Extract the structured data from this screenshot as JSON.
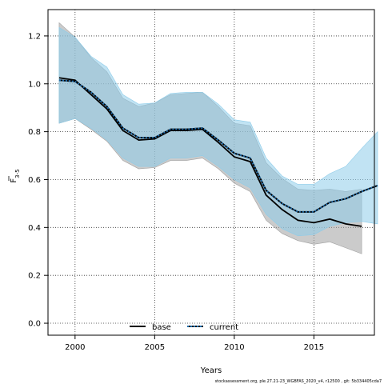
{
  "chart_data": {
    "type": "line",
    "xlabel": "Years",
    "ylabel": "F",
    "ylabel_sub": "3-5",
    "xlim": [
      1998.3,
      2018.8
    ],
    "ylim": [
      -0.05,
      1.31
    ],
    "xticks": [
      2000,
      2005,
      2010,
      2015
    ],
    "yticks": [
      0.0,
      0.2,
      0.4,
      0.6,
      0.8,
      1.0,
      1.2
    ],
    "grid": true,
    "grid_style": "dotted",
    "legend": {
      "placement": "bottom-center"
    },
    "series": [
      {
        "name": "base",
        "color": "#000000",
        "band_color": "#a0a0a0",
        "line_style": "solid",
        "x": [
          1999,
          2000,
          2001,
          2002,
          2003,
          2004,
          2005,
          2006,
          2007,
          2008,
          2009,
          2010,
          2011,
          2012,
          2013,
          2014,
          2015,
          2016,
          2017,
          2018
        ],
        "values": [
          1.025,
          1.015,
          0.955,
          0.895,
          0.805,
          0.765,
          0.77,
          0.805,
          0.805,
          0.81,
          0.755,
          0.695,
          0.675,
          0.535,
          0.475,
          0.43,
          0.42,
          0.435,
          0.415,
          0.405
        ],
        "lower": [
          0.835,
          0.855,
          0.81,
          0.76,
          0.68,
          0.645,
          0.65,
          0.68,
          0.68,
          0.69,
          0.645,
          0.585,
          0.55,
          0.43,
          0.375,
          0.345,
          0.33,
          0.34,
          0.315,
          0.29
        ],
        "upper": [
          1.255,
          1.195,
          1.11,
          1.05,
          0.94,
          0.905,
          0.92,
          0.955,
          0.96,
          0.965,
          0.905,
          0.835,
          0.825,
          0.67,
          0.605,
          0.56,
          0.555,
          0.56,
          0.55,
          0.56
        ]
      },
      {
        "name": "current",
        "color": "#1f6fb0",
        "band_color": "#8ecce9",
        "line_style": "dotted",
        "x": [
          1999,
          2000,
          2001,
          2002,
          2003,
          2004,
          2005,
          2006,
          2007,
          2008,
          2009,
          2010,
          2011,
          2012,
          2013,
          2014,
          2015,
          2016,
          2017,
          2018,
          2019
        ],
        "values": [
          1.015,
          1.01,
          0.965,
          0.905,
          0.815,
          0.775,
          0.775,
          0.81,
          0.81,
          0.815,
          0.765,
          0.71,
          0.69,
          0.555,
          0.5,
          0.465,
          0.465,
          0.505,
          0.52,
          0.55,
          0.575
        ],
        "lower": [
          0.835,
          0.855,
          0.815,
          0.765,
          0.69,
          0.655,
          0.655,
          0.69,
          0.69,
          0.7,
          0.655,
          0.6,
          0.565,
          0.455,
          0.395,
          0.365,
          0.37,
          0.405,
          0.42,
          0.425,
          0.415
        ],
        "upper": [
          1.235,
          1.195,
          1.115,
          1.07,
          0.955,
          0.915,
          0.92,
          0.96,
          0.965,
          0.965,
          0.915,
          0.85,
          0.84,
          0.69,
          0.615,
          0.58,
          0.58,
          0.625,
          0.655,
          0.73,
          0.8
        ]
      }
    ],
    "footnote": "stockassessment.org, ple.27.21-23_WGBFAS_2020_v4, r12500 , git: 5b334405cda7"
  }
}
